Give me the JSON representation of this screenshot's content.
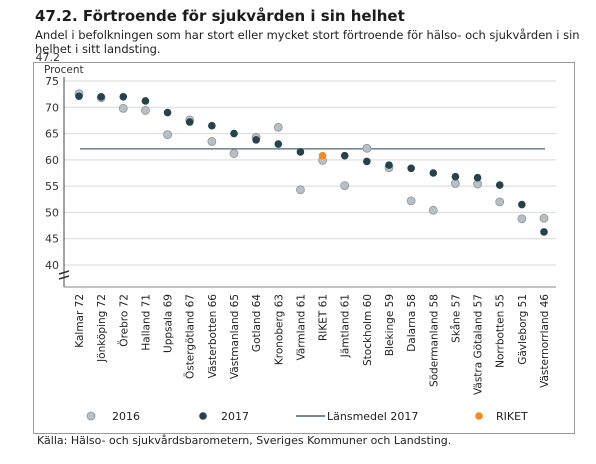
{
  "header": {
    "title": "47.2. Förtroende för sjukvården i sin helhet",
    "subtitle": "Andel i befolkningen som har stort eller mycket stort förtroende för hälso- och sjukvården i sin helhet i sitt landsting."
  },
  "source": "Källa: Hälso- och sjukvårdsbarometern, Sveriges Kommuner och Landsting.",
  "colors": {
    "s2016": "#b8c0c6",
    "s2017": "#25424d",
    "riket": "#f28a1f",
    "avgline": "#25424d"
  },
  "chart_data": {
    "type": "scatter",
    "title": "47.2. Förtroende för sjukvården i sin helhet",
    "ylabel": "Procent",
    "ylim": [
      40,
      75
    ],
    "yticks": [
      "40",
      "45",
      "50",
      "55",
      "60",
      "65",
      "70",
      "75"
    ],
    "ytick_values": [
      40,
      45,
      50,
      55,
      60,
      65,
      70,
      75
    ],
    "top_label": "47.2",
    "axis_break": true,
    "categories": [
      "Kalmar 72",
      "Jönköping 72",
      "Örebro 72",
      "Halland 71",
      "Uppsala 69",
      "Östergötland 67",
      "Västerbotten 66",
      "Västmanland 65",
      "Gotland 64",
      "Kronoberg 63",
      "Värmland 61",
      "RIKET 61",
      "Jämtland 61",
      "Stockholm 60",
      "Blekinge 59",
      "Dalarna 58",
      "Södermanland 58",
      "Skåne 57",
      "Västra Götaland 57",
      "Norrbotten 55",
      "Gävleborg 51",
      "Västernorrland 46"
    ],
    "series": [
      {
        "name": "2016",
        "values": [
          72.6,
          71.8,
          69.8,
          69.4,
          64.8,
          67.6,
          63.5,
          61.2,
          64.3,
          66.2,
          54.3,
          59.9,
          55.1,
          62.2,
          58.5,
          52.2,
          50.4,
          55.5,
          55.4,
          52.0,
          48.8,
          48.9
        ]
      },
      {
        "name": "2017",
        "values": [
          72.1,
          72.0,
          72.0,
          71.2,
          69.0,
          67.2,
          66.5,
          65.0,
          63.8,
          63.0,
          61.5,
          60.8,
          60.8,
          59.7,
          59.0,
          58.4,
          57.5,
          56.8,
          56.6,
          55.2,
          51.5,
          46.3
        ]
      },
      {
        "name": "Länsmedel 2017",
        "type": "line",
        "value": 62.1
      }
    ],
    "riket_category_index": 11,
    "legend": [
      "2016",
      "2017",
      "Länsmedel 2017",
      "RIKET"
    ],
    "legend_position": "bottom",
    "grid": "y-major"
  }
}
